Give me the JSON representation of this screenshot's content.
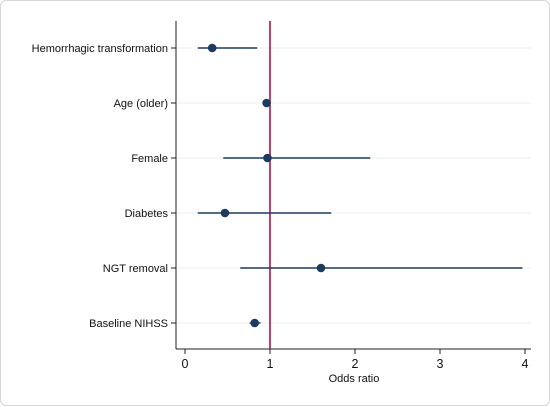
{
  "chart_data": {
    "type": "scatter",
    "subtype": "forest-plot",
    "title": "",
    "xlabel": "Odds ratio",
    "ylabel": "",
    "xlim": [
      0,
      4
    ],
    "xticks": [
      "0",
      "1",
      "2",
      "3",
      "4"
    ],
    "reference_line": 1,
    "grid": "horizontal",
    "categories": [
      "Hemorrhagic transformation",
      "Age (older)",
      "Female",
      "Diabetes",
      "NGT removal",
      "Baseline NIHSS"
    ],
    "estimates": [
      0.32,
      0.96,
      0.97,
      0.47,
      1.6,
      0.82
    ],
    "ci_lower": [
      0.15,
      0.94,
      0.45,
      0.15,
      0.65,
      0.76
    ],
    "ci_upper": [
      0.85,
      0.98,
      2.18,
      1.72,
      3.97,
      0.89
    ]
  },
  "colors": {
    "marker": "#1e3a5f",
    "ci_line": "#1e3a5f",
    "reference_line": "#b0003a",
    "grid": "#e8edf0",
    "axis": "#222222"
  }
}
